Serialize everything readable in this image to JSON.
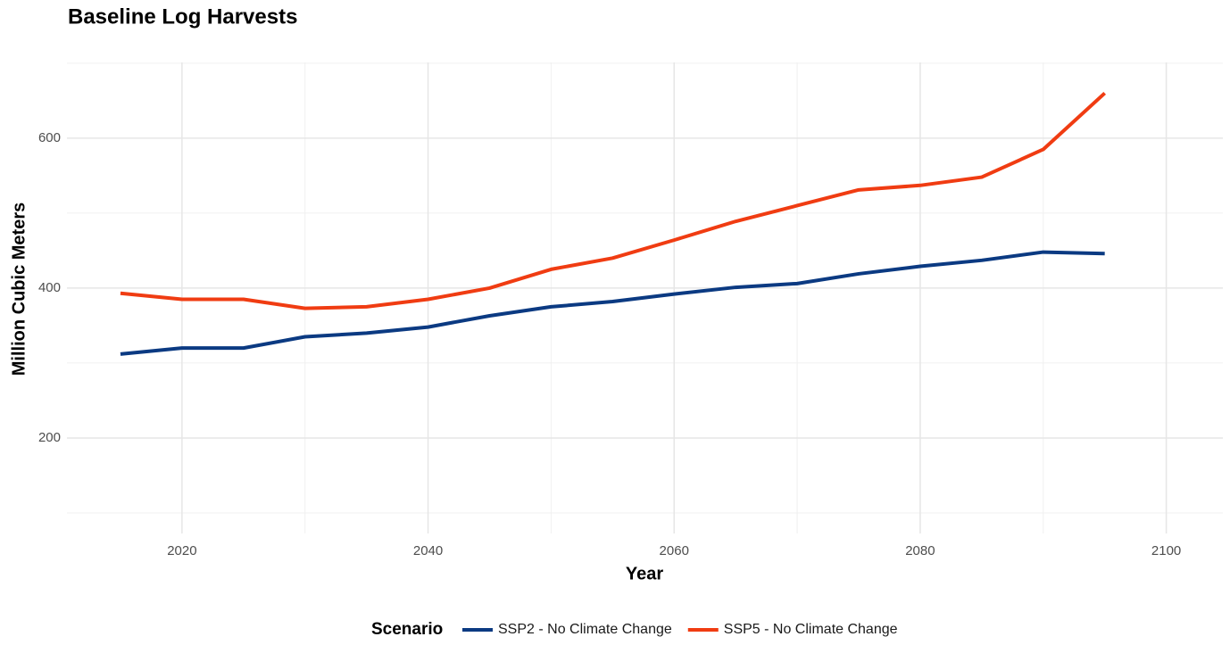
{
  "chart_data": {
    "type": "line",
    "title": "Baseline Log Harvests",
    "x_label": "Year",
    "y_label": "Million Cubic Meters",
    "x": [
      2015,
      2020,
      2025,
      2030,
      2035,
      2040,
      2045,
      2050,
      2055,
      2060,
      2065,
      2070,
      2075,
      2080,
      2085,
      2090,
      2095
    ],
    "series": [
      {
        "name": "SSP2 - No Climate Change",
        "color": "#0b3a82",
        "values": [
          312,
          320,
          320,
          335,
          340,
          348,
          363,
          375,
          382,
          392,
          401,
          406,
          419,
          429,
          437,
          448,
          446
        ]
      },
      {
        "name": "SSP5 - No Climate Change",
        "color": "#f03c12",
        "values": [
          393,
          385,
          385,
          373,
          375,
          385,
          400,
          425,
          440,
          464,
          489,
          510,
          531,
          537,
          548,
          585,
          660
        ]
      }
    ],
    "xlim": [
      2010.65,
      2104.6
    ],
    "ylim": [
      72.6,
      701
    ],
    "xticks": [
      2020,
      2040,
      2060,
      2080,
      2100
    ],
    "yticks": [
      200,
      400,
      600
    ],
    "grid": true,
    "minor_grid": true,
    "legend_title": "Scenario",
    "legend_position": "bottom"
  }
}
